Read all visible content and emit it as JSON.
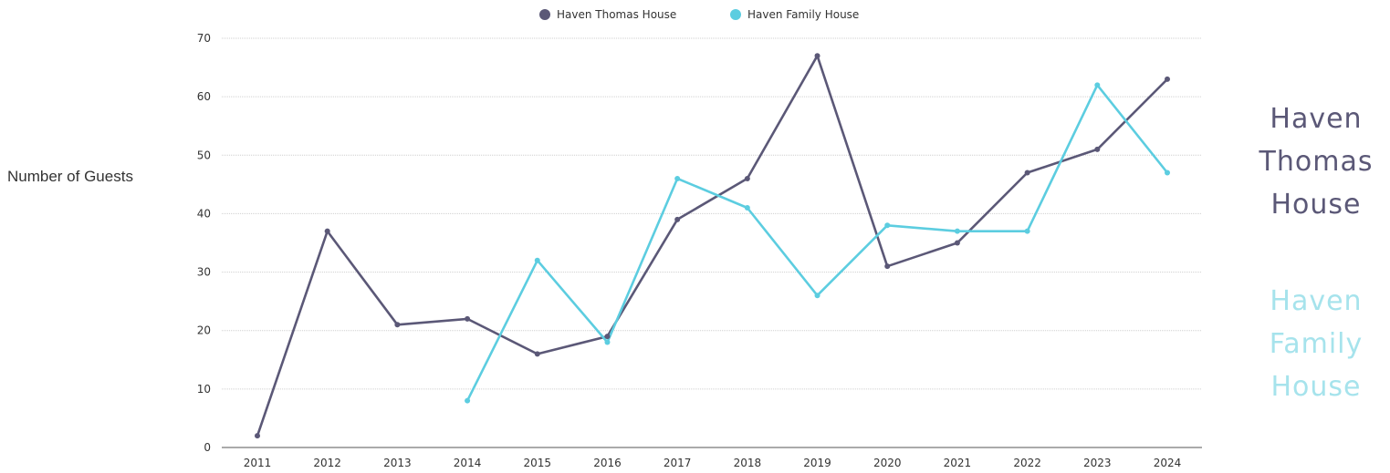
{
  "chart_data": {
    "type": "line",
    "x": [
      "2011",
      "2012",
      "2013",
      "2014",
      "2015",
      "2016",
      "2017",
      "2018",
      "2019",
      "2020",
      "2021",
      "2022",
      "2023",
      "2024"
    ],
    "series": [
      {
        "name": "Haven Thomas House",
        "color": "#5b5877",
        "values": [
          2,
          37,
          21,
          22,
          16,
          19,
          39,
          46,
          67,
          31,
          35,
          47,
          51,
          63
        ]
      },
      {
        "name": "Haven Family House",
        "color": "#5ccde0",
        "values": [
          null,
          null,
          null,
          8,
          32,
          18,
          46,
          41,
          26,
          38,
          37,
          37,
          62,
          47
        ]
      }
    ],
    "title": "",
    "xlabel": "",
    "ylabel": "Number of Guests",
    "ylim": [
      0,
      70
    ],
    "yticks": [
      0,
      10,
      20,
      30,
      40,
      50,
      60,
      70
    ],
    "grid": true,
    "legend_position": "top-center"
  },
  "side_labels": [
    {
      "lines": [
        "Haven",
        "Thomas",
        "House"
      ],
      "color": "#5b5877"
    },
    {
      "lines": [
        "Haven",
        "Family",
        "House"
      ],
      "color": "#a6e3ec"
    }
  ]
}
